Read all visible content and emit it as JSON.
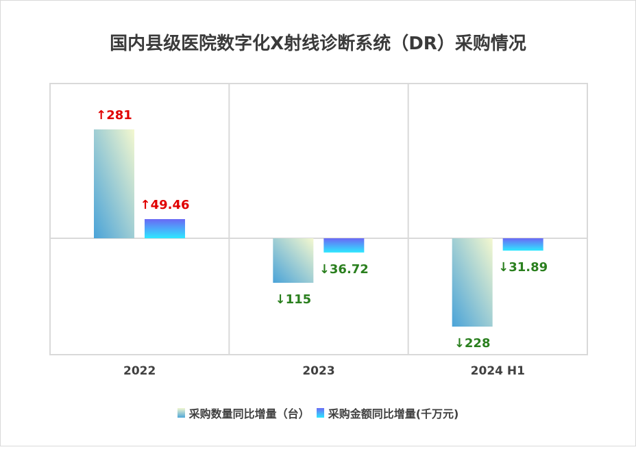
{
  "chart_data": {
    "type": "bar",
    "title": "国内县级医院数字化X射线诊断系统（DR）采购情况",
    "categories": [
      "2022",
      "2023",
      "2024 H1"
    ],
    "series": [
      {
        "name": "采购数量同比增量（台）",
        "values": [
          281,
          -115,
          -228
        ],
        "labels": [
          "↑281",
          "↓115",
          "↓228"
        ]
      },
      {
        "name": "采购金额同比增量(千万元)",
        "values": [
          49.46,
          -36.72,
          -31.89
        ],
        "labels": [
          "↑49.46",
          "↓36.72",
          "↓31.89"
        ]
      }
    ],
    "colors": {
      "positive_label": "#e00000",
      "negative_label": "#2a7f1e",
      "gridline": "#d9d9d9"
    },
    "grid": true,
    "legend_position": "bottom"
  }
}
